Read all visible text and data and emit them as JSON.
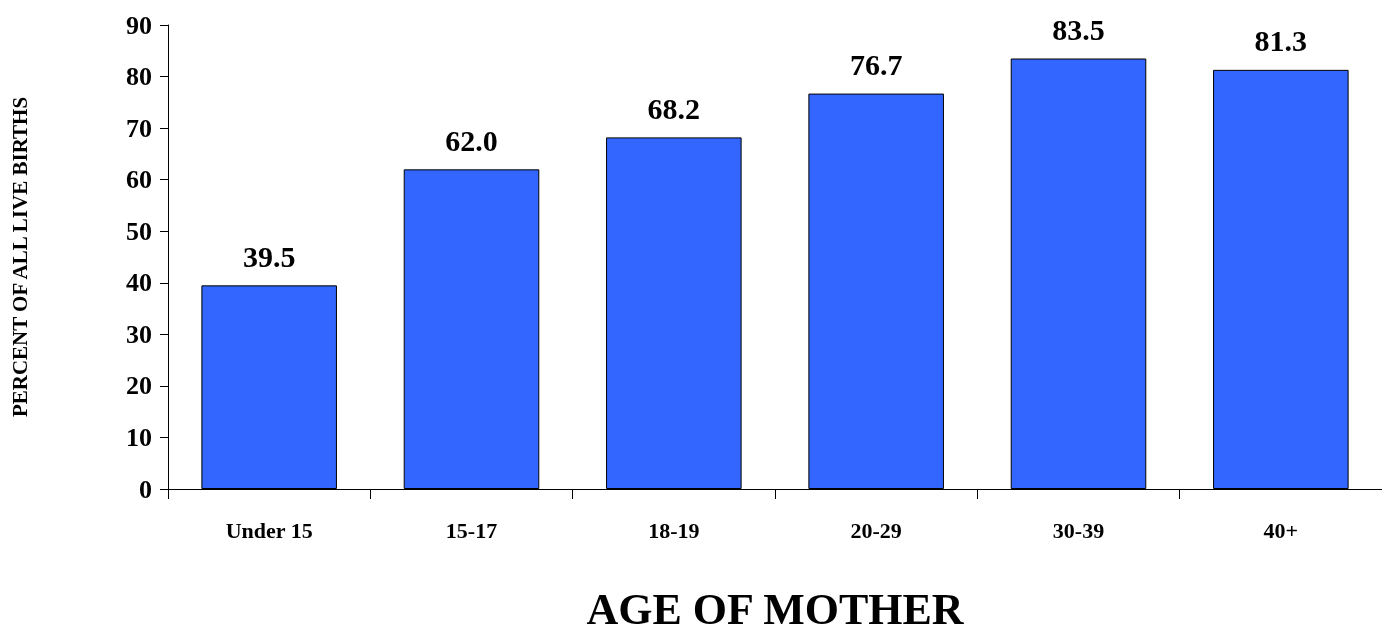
{
  "chart_data": {
    "type": "bar",
    "xlabel": "AGE OF MOTHER",
    "ylabel": "PERCENT OF ALL LIVE BIRTHS",
    "categories": [
      "Under 15",
      "15-17",
      "18-19",
      "20-29",
      "30-39",
      "40+"
    ],
    "values": [
      39.5,
      62.0,
      68.2,
      76.7,
      83.5,
      81.3
    ],
    "value_labels": [
      "39.5",
      "62.0",
      "68.2",
      "76.7",
      "83.5",
      "81.3"
    ],
    "color": "#3366ff",
    "ylim": [
      0,
      90
    ],
    "yticks": [
      0,
      10,
      20,
      30,
      40,
      50,
      60,
      70,
      80,
      90
    ],
    "grid": false
  }
}
